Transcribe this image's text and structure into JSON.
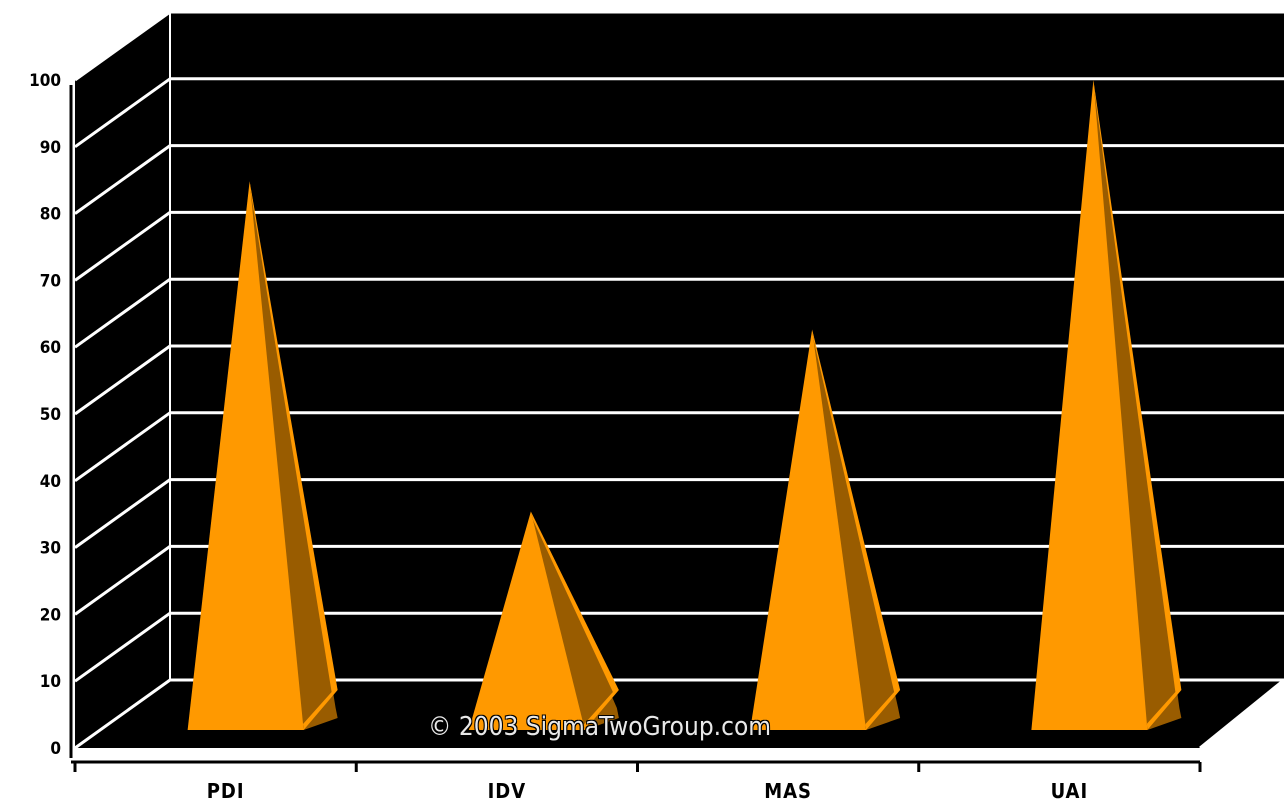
{
  "chart_data": {
    "type": "bar",
    "style": "3d-pyramid",
    "categories": [
      "PDI",
      "IDV",
      "MAS",
      "UAI"
    ],
    "values": [
      74,
      25,
      52,
      89
    ],
    "ylim": [
      0,
      100
    ],
    "yticks": [
      0,
      10,
      20,
      30,
      40,
      50,
      60,
      70,
      80,
      90,
      100
    ],
    "grid": true,
    "title": "",
    "xlabel": "",
    "ylabel": "",
    "colors": {
      "pyramid_front": "#ff9900",
      "pyramid_side": "#995c00",
      "plot_background": "#000000",
      "gridlines": "#ffffff",
      "page_background": "#ffffff"
    }
  },
  "watermark": "© 2003 SigmaTwoGroup.com"
}
